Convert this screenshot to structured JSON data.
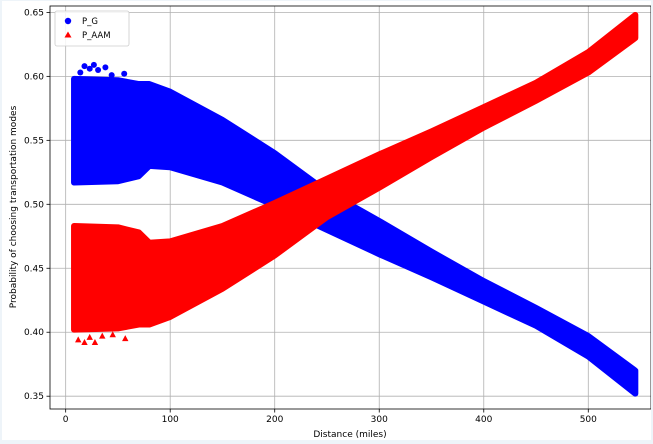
{
  "chart_data": {
    "type": "scatter",
    "title": "",
    "xlabel": "Distance (miles)",
    "ylabel": "Probability of choosing transportation modes",
    "xlim": [
      -15,
      560
    ],
    "ylim": [
      0.34,
      0.655
    ],
    "xticks": [
      0,
      100,
      200,
      300,
      400,
      500
    ],
    "yticks": [
      0.35,
      0.4,
      0.45,
      0.5,
      0.55,
      0.6,
      0.65
    ],
    "ytick_labels": [
      "0.35",
      "0.40",
      "0.45",
      "0.50",
      "0.55",
      "0.60",
      "0.65"
    ],
    "grid": true,
    "legend_position": "top-left",
    "series": [
      {
        "name": "P_G",
        "marker": "circle",
        "color": "#0000ff",
        "band": [
          {
            "x": 8,
            "low": 0.517,
            "high": 0.598
          },
          {
            "x": 50,
            "low": 0.518,
            "high": 0.597
          },
          {
            "x": 70,
            "low": 0.522,
            "high": 0.594
          },
          {
            "x": 80,
            "low": 0.53,
            "high": 0.594
          },
          {
            "x": 100,
            "low": 0.529,
            "high": 0.588
          },
          {
            "x": 150,
            "low": 0.517,
            "high": 0.566
          },
          {
            "x": 200,
            "low": 0.499,
            "high": 0.54
          },
          {
            "x": 250,
            "low": 0.48,
            "high": 0.51
          },
          {
            "x": 300,
            "low": 0.461,
            "high": 0.487
          },
          {
            "x": 350,
            "low": 0.443,
            "high": 0.463
          },
          {
            "x": 400,
            "low": 0.424,
            "high": 0.44
          },
          {
            "x": 450,
            "low": 0.405,
            "high": 0.419
          },
          {
            "x": 500,
            "low": 0.381,
            "high": 0.397
          },
          {
            "x": 545,
            "low": 0.352,
            "high": 0.37
          }
        ],
        "outliers": [
          {
            "x": 18,
            "y": 0.608
          },
          {
            "x": 23,
            "y": 0.606
          },
          {
            "x": 27,
            "y": 0.609
          },
          {
            "x": 31,
            "y": 0.605
          },
          {
            "x": 38,
            "y": 0.607
          },
          {
            "x": 56,
            "y": 0.602
          },
          {
            "x": 14,
            "y": 0.603
          },
          {
            "x": 44,
            "y": 0.601
          }
        ]
      },
      {
        "name": "P_AAM",
        "marker": "triangle",
        "color": "#ff0000",
        "band": [
          {
            "x": 8,
            "low": 0.402,
            "high": 0.483
          },
          {
            "x": 50,
            "low": 0.403,
            "high": 0.482
          },
          {
            "x": 70,
            "low": 0.406,
            "high": 0.478
          },
          {
            "x": 80,
            "low": 0.406,
            "high": 0.47
          },
          {
            "x": 100,
            "low": 0.412,
            "high": 0.471
          },
          {
            "x": 150,
            "low": 0.434,
            "high": 0.483
          },
          {
            "x": 200,
            "low": 0.46,
            "high": 0.501
          },
          {
            "x": 250,
            "low": 0.49,
            "high": 0.52
          },
          {
            "x": 300,
            "low": 0.513,
            "high": 0.539
          },
          {
            "x": 350,
            "low": 0.537,
            "high": 0.557
          },
          {
            "x": 400,
            "low": 0.56,
            "high": 0.576
          },
          {
            "x": 450,
            "low": 0.581,
            "high": 0.595
          },
          {
            "x": 500,
            "low": 0.603,
            "high": 0.619
          },
          {
            "x": 545,
            "low": 0.63,
            "high": 0.648
          }
        ],
        "outliers": [
          {
            "x": 12,
            "y": 0.394
          },
          {
            "x": 18,
            "y": 0.392
          },
          {
            "x": 23,
            "y": 0.396
          },
          {
            "x": 28,
            "y": 0.392
          },
          {
            "x": 35,
            "y": 0.397
          },
          {
            "x": 45,
            "y": 0.398
          },
          {
            "x": 57,
            "y": 0.395
          }
        ]
      }
    ]
  }
}
